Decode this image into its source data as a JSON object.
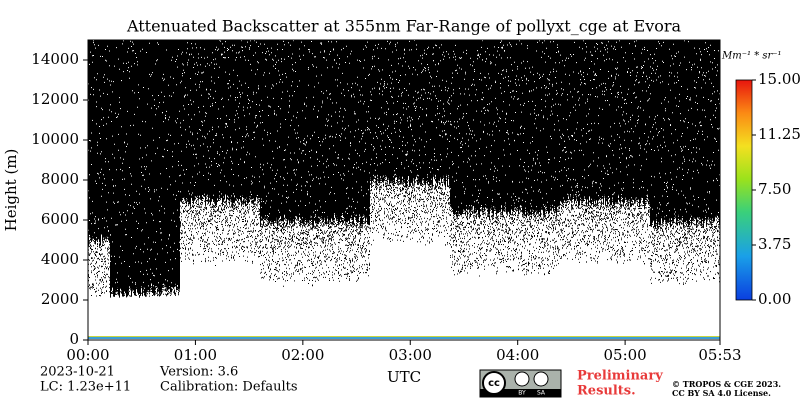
{
  "chart_data": {
    "type": "heatmap",
    "title": "Attenuated Backscatter at 355nm Far-Range of pollyxt_cge at Evora",
    "y_label": "Height (m)",
    "x_label": "UTC",
    "xlim": [
      0,
      353
    ],
    "xticks": [
      {
        "value": 0,
        "label": "00:00"
      },
      {
        "value": 60,
        "label": "01:00"
      },
      {
        "value": 120,
        "label": "02:00"
      },
      {
        "value": 180,
        "label": "03:00"
      },
      {
        "value": 240,
        "label": "04:00"
      },
      {
        "value": 300,
        "label": "05:00"
      },
      {
        "value": 353,
        "label": "05:53"
      }
    ],
    "ylim": [
      0,
      15000
    ],
    "yticks": [
      0,
      2000,
      4000,
      6000,
      8000,
      10000,
      12000,
      14000
    ],
    "colorbar": {
      "label": "Mm⁻¹ * sr⁻¹",
      "lim": [
        0,
        15
      ],
      "ticks": [
        {
          "value": 0,
          "label": "0.00"
        },
        {
          "value": 3.75,
          "label": "3.75"
        },
        {
          "value": 7.5,
          "label": "7.50"
        },
        {
          "value": 11.25,
          "label": "11.25"
        },
        {
          "value": 15,
          "label": "15.00"
        }
      ]
    },
    "footer": {
      "date": "2023-10-21",
      "lc": "LC: 1.23e+11",
      "version": "Version: 3.6",
      "calibration": "Calibration: Defaults",
      "preliminary": [
        "Preliminary",
        "Results."
      ],
      "copyright": [
        "© TROPOS & CGE 2023.",
        "CC BY SA 4.0 License."
      ]
    }
  }
}
